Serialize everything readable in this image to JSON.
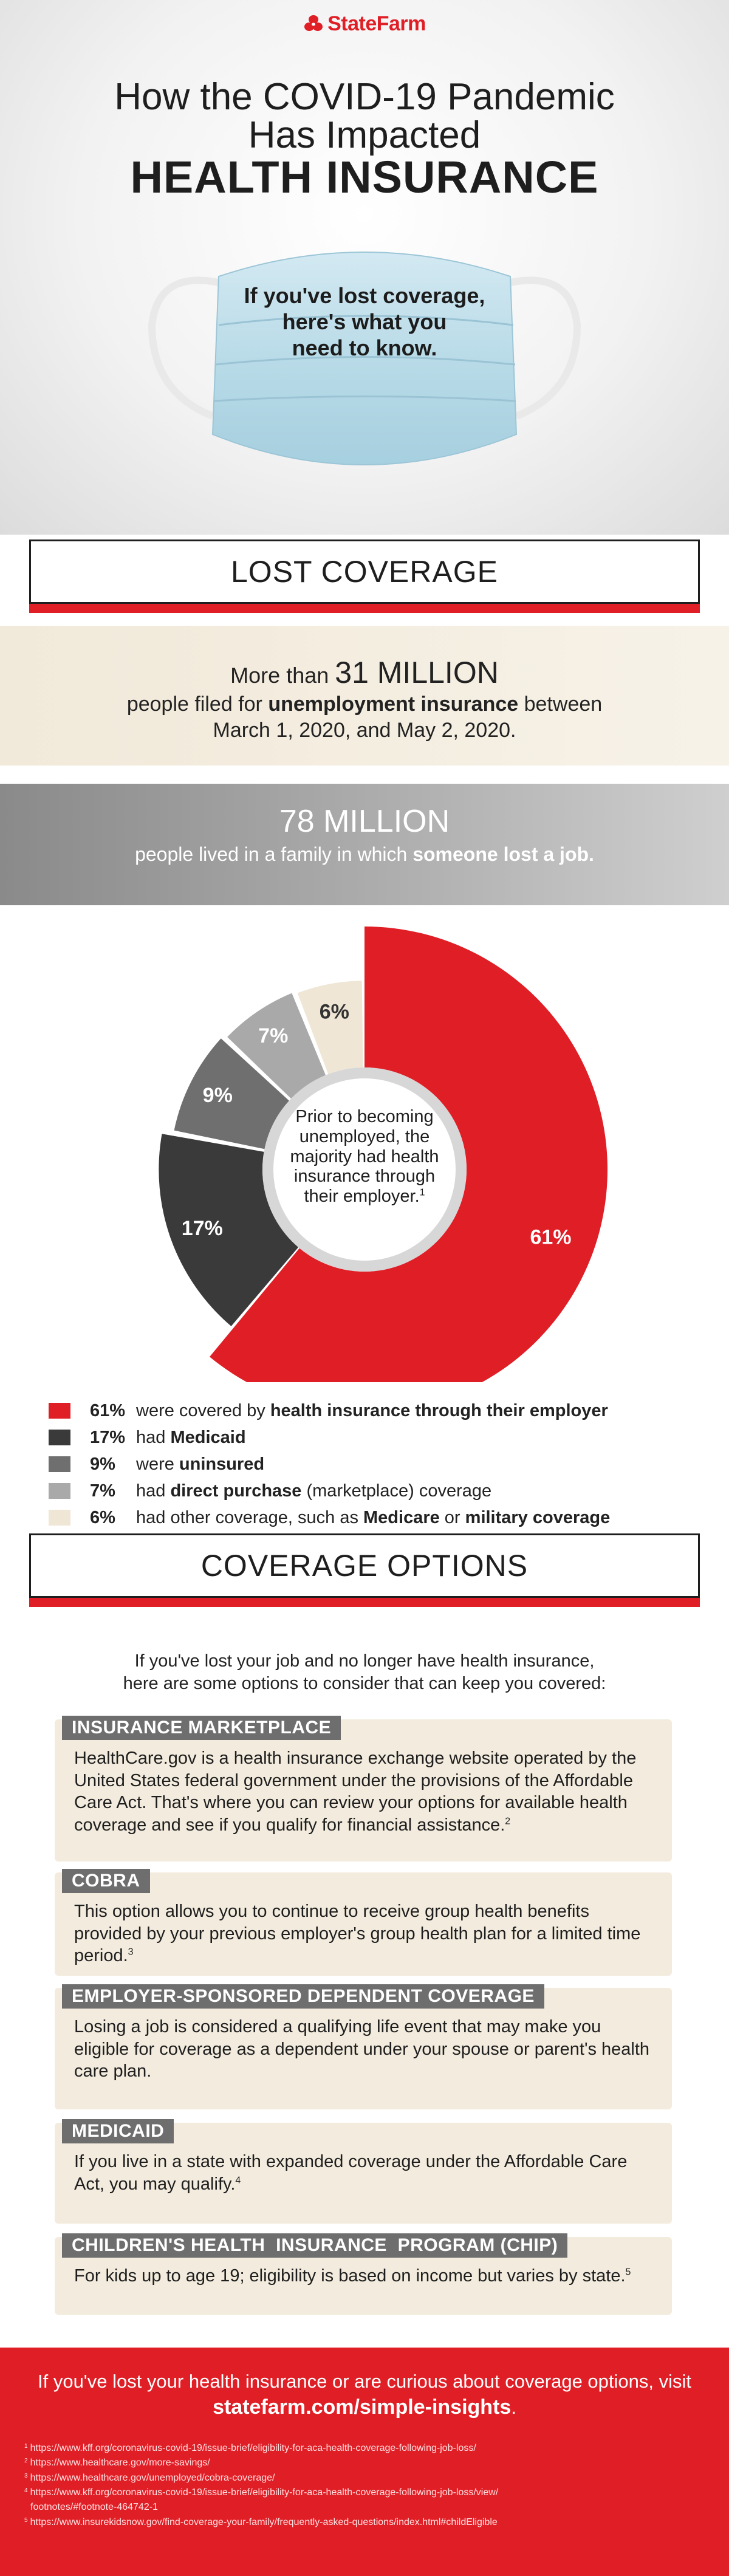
{
  "brand": {
    "name": "StateFarm",
    "logo_icon": "state-farm-ovals-icon",
    "color": "#e01e26"
  },
  "hero": {
    "title_line1": "How the COVID-19 Pandemic",
    "title_line2": "Has Impacted",
    "title_line3": "HEALTH INSURANCE",
    "mask_text_line1": "If you've lost coverage,",
    "mask_text_line2": "here's what you",
    "mask_text_line3": "need to know.",
    "mask_icon": "surgical-mask-icon"
  },
  "lost_coverage": {
    "heading": "LOST COVERAGE",
    "stat1": {
      "prefix": "More than ",
      "number": "31 MILLION",
      "line2_pre": "people filed for ",
      "line2_bold": "unemployment insurance",
      "line2_post": " between",
      "line3": "March 1, 2020, and May 2, 2020."
    },
    "stat2": {
      "number": "78 MILLION",
      "sub_pre": "people lived in a family in which ",
      "sub_bold": "someone lost a job."
    }
  },
  "donut": {
    "center_line1": "Prior to becoming",
    "center_line2": "unemployed, the",
    "center_line3": "majority had health",
    "center_line4": "insurance through",
    "center_line5": "their employer.",
    "center_note": "1"
  },
  "chart_data": {
    "type": "pie",
    "categories": [
      "Employer",
      "Medicaid",
      "Uninsured",
      "Direct purchase",
      "Other coverage"
    ],
    "values": [
      61,
      17,
      9,
      7,
      6
    ],
    "labels": [
      "61%",
      "17%",
      "9%",
      "7%",
      "6%"
    ],
    "colors": [
      "#e01e26",
      "#3a3a3a",
      "#6f6f6f",
      "#a9a9a9",
      "#efe6d6"
    ],
    "label_colors": [
      "#ffffff",
      "#ffffff",
      "#ffffff",
      "#ffffff",
      "#333333"
    ]
  },
  "legend": [
    {
      "pct": "61%",
      "pre": "were covered by ",
      "bold": "health insurance through their employer",
      "post": "",
      "color": "#e01e26"
    },
    {
      "pct": "17%",
      "pre": "had ",
      "bold": "Medicaid",
      "post": "",
      "color": "#3a3a3a"
    },
    {
      "pct": "9%",
      "pre": "were ",
      "bold": "uninsured",
      "post": "",
      "color": "#6f6f6f"
    },
    {
      "pct": "7%",
      "pre": "had ",
      "bold": "direct purchase",
      "post": " (marketplace) coverage",
      "color": "#a9a9a9"
    },
    {
      "pct": "6%",
      "pre": "had other coverage, such as ",
      "bold": "Medicare",
      "post": " or ",
      "bold2": "military coverage",
      "color": "#efe6d6"
    }
  ],
  "coverage_options": {
    "heading": "COVERAGE OPTIONS",
    "intro_line1": "If you've lost your job and no longer have health insurance,",
    "intro_line2": "here are some options to consider that can keep you covered:",
    "options": [
      {
        "tag": "INSURANCE MARKETPLACE",
        "body": "HealthCare.gov is a health insurance exchange website operated by the United States federal government under the provisions of the Affordable Care Act. That's where you can review your options for available health coverage and see if you qualify for financial assistance.",
        "note": "2"
      },
      {
        "tag": "COBRA",
        "body": "This option allows you to continue to receive group health benefits provided by your previous employer's group health plan for a limited time period.",
        "note": "3"
      },
      {
        "tag": "EMPLOYER-SPONSORED DEPENDENT COVERAGE",
        "body": "Losing a job is considered a qualifying life event that may make you eligible for coverage as a dependent under your spouse or parent's health care plan.",
        "note": ""
      },
      {
        "tag": "MEDICAID",
        "body": "If you live in a state with expanded coverage under the Affordable Care Act, you may qualify.",
        "note": "4"
      },
      {
        "tag": "CHILDREN'S HEALTH  INSURANCE  PROGRAM (CHIP)",
        "body": "For kids up to age 19; eligibility is based on income but varies by state.",
        "note": "5"
      }
    ]
  },
  "footer": {
    "cta": "If you've lost your health insurance or are curious about coverage options, visit",
    "site": "statefarm.com/simple-insights",
    "site_suffix": ".",
    "notes": [
      {
        "n": "1",
        "text": "https://www.kff.org/coronavirus-covid-19/issue-brief/eligibility-for-aca-health-coverage-following-job-loss/"
      },
      {
        "n": "2",
        "text": "https://www.healthcare.gov/more-savings/"
      },
      {
        "n": "3",
        "text": "https://www.healthcare.gov/unemployed/cobra-coverage/"
      },
      {
        "n": "4",
        "text": "https://www.kff.org/coronavirus-covid-19/issue-brief/eligibility-for-aca-health-coverage-following-job-loss/view/"
      },
      {
        "n": "",
        "text": "footnotes/#footnote-464742-1"
      },
      {
        "n": "5",
        "text": "https://www.insurekidsnow.gov/find-coverage-your-family/frequently-asked-questions/index.html#childEligible"
      }
    ]
  }
}
